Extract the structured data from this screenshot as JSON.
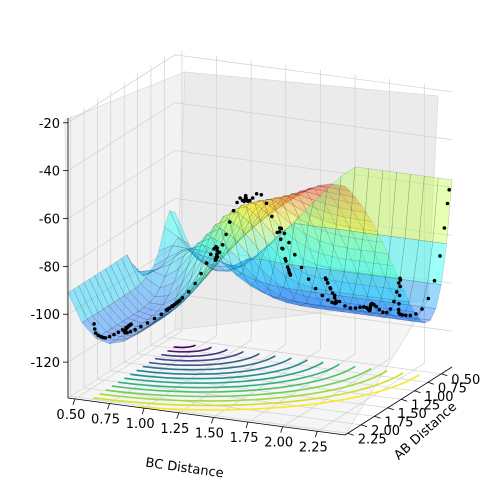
{
  "chart_data": {
    "type": "surface3d",
    "title": "",
    "xlabel": "BC Distance",
    "ylabel": "AB Distance",
    "zlabel": "",
    "x_ticks": [
      "0.50",
      "0.75",
      "1.00",
      "1.25",
      "1.50",
      "1.75",
      "2.00",
      "2.25"
    ],
    "y_ticks": [
      "0.50",
      "0.75",
      "1.00",
      "1.25",
      "1.50",
      "1.75",
      "2.00",
      "2.25"
    ],
    "z_ticks": [
      "-20",
      "-40",
      "-60",
      "-80",
      "-100",
      "-120"
    ],
    "xlim": [
      0.45,
      2.45
    ],
    "ylim": [
      0.3,
      2.3
    ],
    "zlim": [
      -135,
      -18
    ],
    "surface_colormap": "jet",
    "surface_alpha": 0.4,
    "contour_colormap": "viridis",
    "contour_levels": 15,
    "points_color": "#000000",
    "grid": true
  }
}
